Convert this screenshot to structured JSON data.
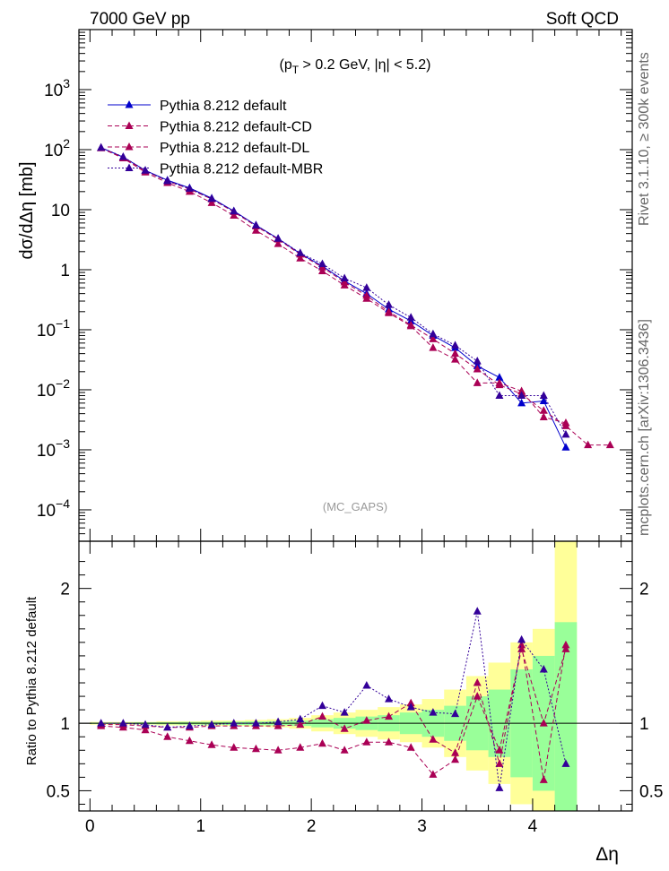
{
  "header": {
    "left": "7000 GeV pp",
    "right": "Soft QCD"
  },
  "side_labels": {
    "top": "Rivet 3.1.10, ≥ 300k events",
    "bottom": "mcplots.cern.ch [arXiv:1306.3436]"
  },
  "cut_label": "(p_T > 0.2 GeV, |η| < 5.2)",
  "analysis_tag": "(MC_GAPS)",
  "chart_data": [
    {
      "type": "scatter",
      "ylabel": "dσ/dΔη [mb]",
      "xlabel": "",
      "xlim": [
        -0.1,
        4.9
      ],
      "ylim": [
        3e-05,
        10000
      ],
      "ylog": true,
      "yticks": [
        {
          "value": 0.0001,
          "label": "10^-4"
        },
        {
          "value": 0.001,
          "label": "10^-3"
        },
        {
          "value": 0.01,
          "label": "10^-2"
        },
        {
          "value": 0.1,
          "label": "10^-1"
        },
        {
          "value": 1,
          "label": "1"
        },
        {
          "value": 10,
          "label": "10"
        },
        {
          "value": 100,
          "label": "10^2"
        },
        {
          "value": 1000,
          "label": "10^3"
        }
      ],
      "legend_position": "top-left",
      "series": [
        {
          "name": "Pythia 8.212 default",
          "color": "#0000cc",
          "style": "solid",
          "x": [
            0.1,
            0.3,
            0.5,
            0.7,
            0.9,
            1.1,
            1.3,
            1.5,
            1.7,
            1.9,
            2.1,
            2.3,
            2.5,
            2.7,
            2.9,
            3.1,
            3.3,
            3.5,
            3.7,
            3.9,
            4.1,
            4.3
          ],
          "y": [
            108,
            75,
            45,
            31,
            23,
            15.5,
            9.5,
            5.5,
            3.3,
            1.85,
            1.15,
            0.65,
            0.4,
            0.22,
            0.14,
            0.08,
            0.05,
            0.025,
            0.016,
            0.006,
            0.0065,
            0.0011
          ]
        },
        {
          "name": "Pythia 8.212 default-CD",
          "color": "#aa0055",
          "style": "dashed",
          "x": [
            0.1,
            0.3,
            0.5,
            0.7,
            0.9,
            1.1,
            1.3,
            1.5,
            1.7,
            1.9,
            2.1,
            2.3,
            2.5,
            2.7,
            2.9,
            3.1,
            3.3,
            3.5,
            3.7,
            3.9,
            4.1,
            4.3,
            4.5,
            4.7
          ],
          "y": [
            107,
            74,
            44,
            30,
            22,
            15,
            9.2,
            5.3,
            3.2,
            1.8,
            1.1,
            0.62,
            0.37,
            0.2,
            0.12,
            0.07,
            0.04,
            0.022,
            0.012,
            0.0085,
            0.0045,
            0.0025,
            0.0012,
            0.0012
          ]
        },
        {
          "name": "Pythia 8.212 default-DL",
          "color": "#aa0055",
          "style": "dashed",
          "x": [
            0.1,
            0.3,
            0.5,
            0.7,
            0.9,
            1.1,
            1.3,
            1.5,
            1.7,
            1.9,
            2.1,
            2.3,
            2.5,
            2.7,
            2.9,
            3.1,
            3.3,
            3.5,
            3.7,
            3.9,
            4.1,
            4.3
          ],
          "y": [
            106,
            72,
            42,
            28,
            20,
            13,
            8,
            4.5,
            2.7,
            1.55,
            0.95,
            0.55,
            0.33,
            0.19,
            0.115,
            0.05,
            0.032,
            0.013,
            0.013,
            0.0095,
            0.0035,
            0.0028
          ]
        },
        {
          "name": "Pythia 8.212 default-MBR",
          "color": "#330099",
          "style": "dotted",
          "x": [
            0.1,
            0.3,
            0.5,
            0.7,
            0.9,
            1.1,
            1.3,
            1.5,
            1.7,
            1.9,
            2.1,
            2.3,
            2.5,
            2.7,
            2.9,
            3.1,
            3.3,
            3.5,
            3.7,
            3.9,
            4.1,
            4.3
          ],
          "y": [
            108,
            76,
            45,
            30,
            22.5,
            15.2,
            9.4,
            5.5,
            3.3,
            1.9,
            1.25,
            0.72,
            0.5,
            0.26,
            0.16,
            0.085,
            0.055,
            0.03,
            0.008,
            0.008,
            0.008,
            0.0018
          ]
        }
      ]
    },
    {
      "type": "scatter",
      "ylabel": "Ratio to Pythia 8.212 default",
      "xlabel": "Δη",
      "xlim": [
        -0.1,
        4.9
      ],
      "ylim": [
        0.35,
        2.35
      ],
      "xticks": [
        0,
        1,
        2,
        3,
        4
      ],
      "yticks": [
        0.5,
        1,
        2
      ],
      "reference_line": 1,
      "uncertainty_bands": {
        "x_edges": [
          0,
          0.2,
          0.4,
          0.6,
          0.8,
          1.0,
          1.2,
          1.4,
          1.6,
          1.8,
          2.0,
          2.2,
          2.4,
          2.6,
          2.8,
          3.0,
          3.2,
          3.4,
          3.6,
          3.8,
          4.0,
          4.2,
          4.4
        ],
        "yellow_half_width": [
          0.01,
          0.01,
          0.01,
          0.015,
          0.015,
          0.02,
          0.02,
          0.025,
          0.03,
          0.04,
          0.06,
          0.08,
          0.1,
          0.12,
          0.14,
          0.18,
          0.25,
          0.35,
          0.45,
          0.6,
          0.7,
          1.4
        ],
        "green_half_width": [
          0.005,
          0.005,
          0.007,
          0.008,
          0.01,
          0.01,
          0.012,
          0.014,
          0.016,
          0.02,
          0.03,
          0.04,
          0.05,
          0.06,
          0.08,
          0.1,
          0.13,
          0.2,
          0.25,
          0.4,
          0.5,
          0.75
        ]
      },
      "series": [
        {
          "name": "Pythia 8.212 default-CD",
          "color": "#aa0055",
          "style": "dashed",
          "x": [
            0.1,
            0.3,
            0.5,
            0.7,
            0.9,
            1.1,
            1.3,
            1.5,
            1.7,
            1.9,
            2.1,
            2.3,
            2.5,
            2.7,
            2.9,
            3.1,
            3.3,
            3.5,
            3.7,
            3.9,
            4.1,
            4.3
          ],
          "y": [
            0.99,
            0.99,
            0.98,
            0.97,
            0.97,
            0.98,
            0.98,
            0.98,
            0.98,
            0.99,
            1.05,
            0.96,
            1.02,
            1.05,
            1.15,
            0.88,
            0.78,
            1.3,
            0.7,
            1.58,
            0.58,
            1.58
          ]
        },
        {
          "name": "Pythia 8.212 default-DL",
          "color": "#aa0055",
          "style": "dashed",
          "x": [
            0.1,
            0.3,
            0.5,
            0.7,
            0.9,
            1.1,
            1.3,
            1.5,
            1.7,
            1.9,
            2.1,
            2.3,
            2.5,
            2.7,
            2.9,
            3.1,
            3.3,
            3.5,
            3.7,
            3.9,
            4.1,
            4.3
          ],
          "y": [
            0.98,
            0.97,
            0.95,
            0.9,
            0.87,
            0.84,
            0.82,
            0.81,
            0.8,
            0.82,
            0.85,
            0.8,
            0.86,
            0.86,
            0.82,
            0.62,
            0.73,
            1.2,
            0.8,
            1.55,
            1.0,
            1.55
          ]
        },
        {
          "name": "Pythia 8.212 default-MBR",
          "color": "#330099",
          "style": "dotted",
          "x": [
            0.1,
            0.3,
            0.5,
            0.7,
            0.9,
            1.1,
            1.3,
            1.5,
            1.7,
            1.9,
            2.1,
            2.3,
            2.5,
            2.7,
            2.9,
            3.1,
            3.3,
            3.5,
            3.7,
            3.9,
            4.1,
            4.3
          ],
          "y": [
            1.0,
            1.0,
            0.99,
            0.97,
            0.98,
            0.99,
            1.0,
            1.0,
            1.01,
            1.03,
            1.13,
            1.08,
            1.28,
            1.18,
            1.12,
            1.08,
            1.07,
            1.83,
            0.52,
            1.62,
            1.4,
            0.7
          ]
        }
      ]
    }
  ]
}
